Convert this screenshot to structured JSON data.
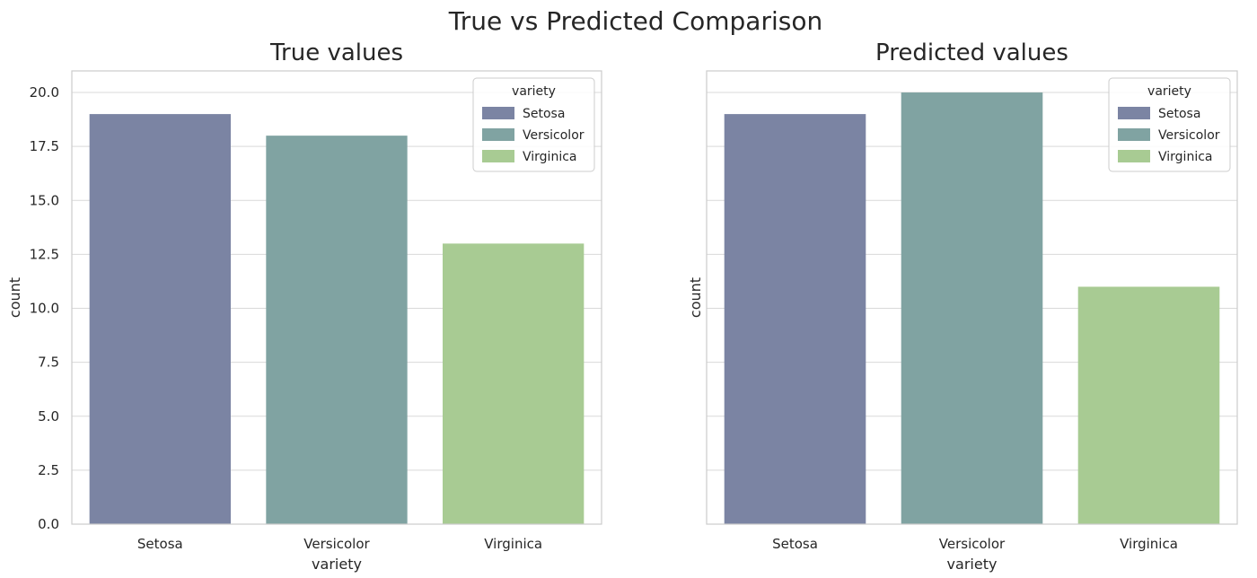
{
  "title": "True vs Predicted Comparison",
  "palette": {
    "Setosa": "#7b84a3",
    "Versicolor": "#80a3a2",
    "Virginica": "#a8cb93",
    "grid": "#d9d9d9",
    "spine": "#cccccc"
  },
  "chart_data": [
    {
      "type": "bar",
      "title": "True values",
      "xlabel": "variety",
      "ylabel": "count",
      "categories": [
        "Setosa",
        "Versicolor",
        "Virginica"
      ],
      "values": [
        19,
        18,
        13
      ],
      "ylim": [
        0,
        21
      ],
      "yticks": [
        0.0,
        2.5,
        5.0,
        7.5,
        10.0,
        12.5,
        15.0,
        17.5,
        20.0
      ],
      "ytick_labels": [
        "0.0",
        "2.5",
        "5.0",
        "7.5",
        "10.0",
        "12.5",
        "15.0",
        "17.5",
        "20.0"
      ],
      "grid": true,
      "legend": {
        "title": "variety",
        "position": "top-right",
        "entries": [
          "Setosa",
          "Versicolor",
          "Virginica"
        ]
      }
    },
    {
      "type": "bar",
      "title": "Predicted values",
      "xlabel": "variety",
      "ylabel": "count",
      "categories": [
        "Setosa",
        "Versicolor",
        "Virginica"
      ],
      "values": [
        19,
        20,
        11
      ],
      "ylim": [
        0,
        21
      ],
      "yticks": [
        0.0,
        2.5,
        5.0,
        7.5,
        10.0,
        12.5,
        15.0,
        17.5,
        20.0
      ],
      "ytick_labels": [],
      "grid": true,
      "legend": {
        "title": "variety",
        "position": "top-right",
        "entries": [
          "Setosa",
          "Versicolor",
          "Virginica"
        ]
      }
    }
  ]
}
